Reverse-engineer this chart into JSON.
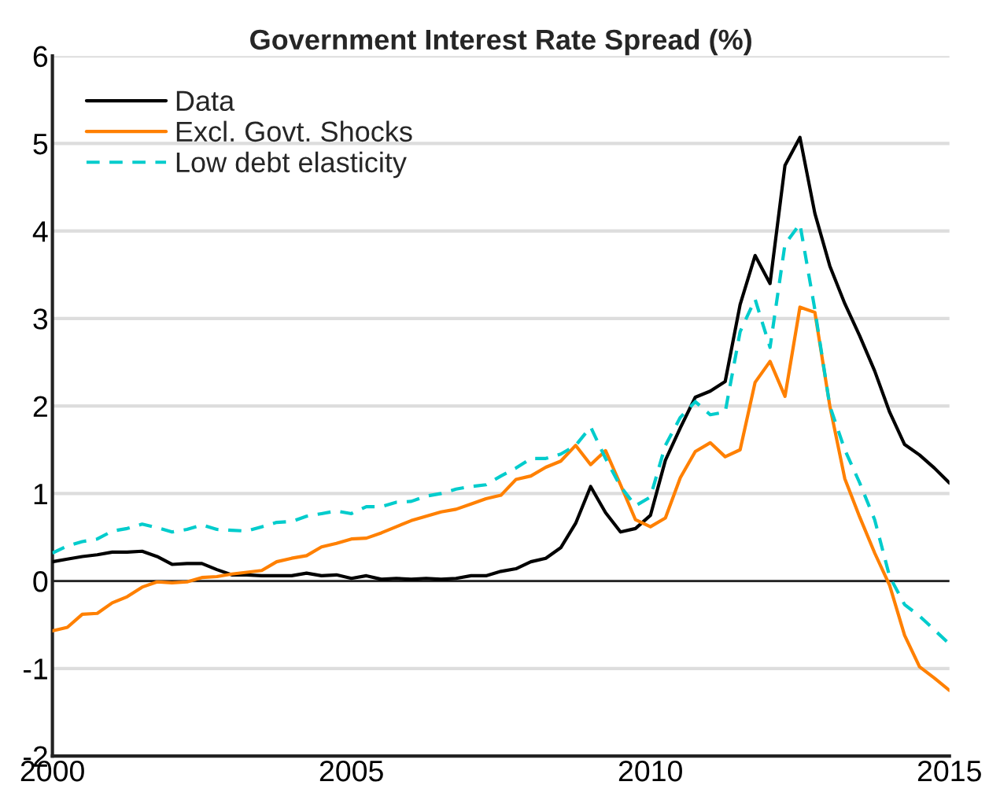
{
  "chart_data": {
    "type": "line",
    "title": "Government Interest Rate Spread (%)",
    "x": [
      2000,
      2000.25,
      2000.5,
      2000.75,
      2001,
      2001.25,
      2001.5,
      2001.75,
      2002,
      2002.25,
      2002.5,
      2002.75,
      2003,
      2003.25,
      2003.5,
      2003.75,
      2004,
      2004.25,
      2004.5,
      2004.75,
      2005,
      2005.25,
      2005.5,
      2005.75,
      2006,
      2006.25,
      2006.5,
      2006.75,
      2007,
      2007.25,
      2007.5,
      2007.75,
      2008,
      2008.25,
      2008.5,
      2008.75,
      2009,
      2009.25,
      2009.5,
      2009.75,
      2010,
      2010.25,
      2010.5,
      2010.75,
      2011,
      2011.25,
      2011.5,
      2011.75,
      2012,
      2012.25,
      2012.5,
      2012.75,
      2013,
      2013.25,
      2013.5,
      2013.75,
      2014,
      2014.25,
      2014.5,
      2014.75,
      2015
    ],
    "series": [
      {
        "name": "Data",
        "color": "#000000",
        "line_style": "solid",
        "values": [
          0.22,
          0.25,
          0.28,
          0.3,
          0.33,
          0.33,
          0.34,
          0.28,
          0.19,
          0.2,
          0.2,
          0.13,
          0.07,
          0.07,
          0.06,
          0.06,
          0.06,
          0.09,
          0.06,
          0.07,
          0.03,
          0.06,
          0.02,
          0.03,
          0.02,
          0.03,
          0.02,
          0.03,
          0.06,
          0.06,
          0.11,
          0.14,
          0.22,
          0.26,
          0.38,
          0.66,
          1.08,
          0.78,
          0.56,
          0.6,
          0.75,
          1.38,
          1.75,
          2.1,
          2.17,
          2.28,
          3.16,
          3.72,
          3.4,
          4.75,
          5.07,
          4.2,
          3.6,
          3.17,
          2.8,
          2.4,
          1.93,
          1.56,
          1.44,
          1.29,
          1.12
        ]
      },
      {
        "name": "Excl. Govt. Shocks",
        "color": "#ff8000",
        "line_style": "solid",
        "values": [
          -0.57,
          -0.53,
          -0.38,
          -0.37,
          -0.25,
          -0.18,
          -0.07,
          -0.01,
          -0.02,
          -0.01,
          0.04,
          0.05,
          0.08,
          0.1,
          0.12,
          0.22,
          0.26,
          0.29,
          0.39,
          0.43,
          0.48,
          0.49,
          0.55,
          0.62,
          0.69,
          0.74,
          0.79,
          0.82,
          0.88,
          0.94,
          0.98,
          1.16,
          1.2,
          1.3,
          1.37,
          1.55,
          1.33,
          1.49,
          1.1,
          0.7,
          0.62,
          0.72,
          1.18,
          1.48,
          1.58,
          1.42,
          1.5,
          2.27,
          2.51,
          2.11,
          3.13,
          3.07,
          2.0,
          1.17,
          0.73,
          0.32,
          -0.05,
          -0.62,
          -0.98,
          -1.11,
          -1.25
        ]
      },
      {
        "name": "Low debt elasticity",
        "color": "#00cccc",
        "line_style": "dashed",
        "values": [
          0.32,
          0.4,
          0.45,
          0.48,
          0.57,
          0.6,
          0.65,
          0.61,
          0.56,
          0.59,
          0.64,
          0.59,
          0.58,
          0.57,
          0.62,
          0.67,
          0.68,
          0.74,
          0.77,
          0.8,
          0.77,
          0.85,
          0.85,
          0.9,
          0.91,
          0.97,
          1.0,
          1.05,
          1.08,
          1.1,
          1.2,
          1.29,
          1.4,
          1.4,
          1.45,
          1.55,
          1.76,
          1.4,
          1.08,
          0.86,
          0.96,
          1.55,
          1.87,
          2.05,
          1.9,
          1.93,
          2.85,
          3.22,
          2.67,
          3.85,
          4.08,
          3.1,
          2.0,
          1.5,
          1.12,
          0.7,
          0.05,
          -0.27,
          -0.4,
          -0.56,
          -0.72
        ]
      }
    ],
    "xlim": [
      2000,
      2015
    ],
    "xticks": [
      2000,
      2005,
      2010,
      2015
    ],
    "ylim": [
      -2,
      6
    ],
    "yticks": [
      -2,
      -1,
      0,
      1,
      2,
      3,
      4,
      5,
      6
    ],
    "ref_lines": [
      {
        "axis": "y",
        "value": 0,
        "color": "#000000",
        "line_style": "solid"
      }
    ],
    "grid": "y",
    "legend": "top left",
    "marker": "none"
  }
}
